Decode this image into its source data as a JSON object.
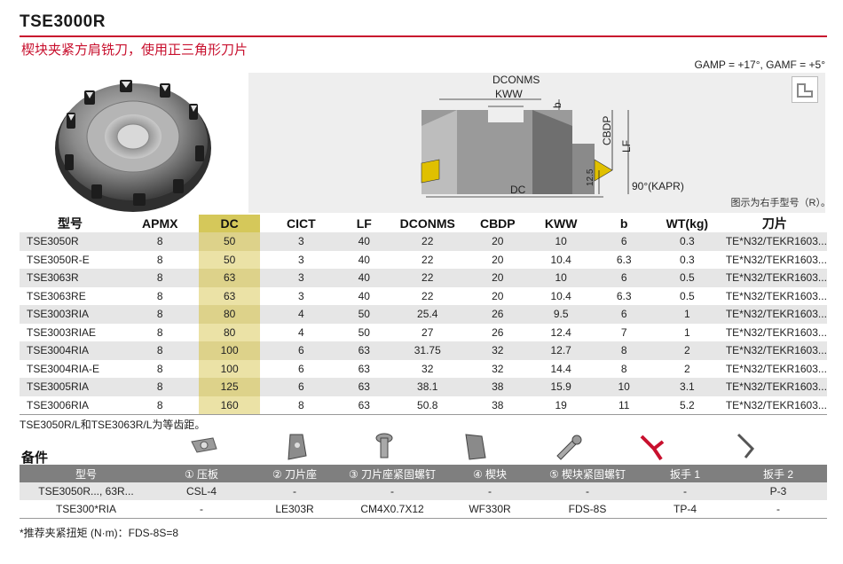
{
  "header": {
    "title": "TSE3000R",
    "subtitle": "楔块夹紧方肩铣刀，使用正三角形刀片",
    "gamp": "GAMP = +17°, GAMF = +5°"
  },
  "diagram": {
    "labels": {
      "dconms": "DCONMS",
      "kww": "KWW",
      "b": "b",
      "cbdp": "CBDP",
      "lf": "LF",
      "dim": "12.5",
      "dc": "DC",
      "kapr": "90°(KAPR)"
    },
    "note": "图示为右手型号（R）。"
  },
  "spec_table": {
    "headers": [
      "型号",
      "APMX",
      "DC",
      "CICT",
      "LF",
      "DCONMS",
      "CBDP",
      "KWW",
      "b",
      "WT(kg)",
      "刀片"
    ],
    "rows": [
      [
        "TSE3050R",
        "8",
        "50",
        "3",
        "40",
        "22",
        "20",
        "10",
        "6",
        "0.3",
        "TE*N32/TEKR1603..."
      ],
      [
        "TSE3050R-E",
        "8",
        "50",
        "3",
        "40",
        "22",
        "20",
        "10.4",
        "6.3",
        "0.3",
        "TE*N32/TEKR1603..."
      ],
      [
        "TSE3063R",
        "8",
        "63",
        "3",
        "40",
        "22",
        "20",
        "10",
        "6",
        "0.5",
        "TE*N32/TEKR1603..."
      ],
      [
        "TSE3063RE",
        "8",
        "63",
        "3",
        "40",
        "22",
        "20",
        "10.4",
        "6.3",
        "0.5",
        "TE*N32/TEKR1603..."
      ],
      [
        "TSE3003RIA",
        "8",
        "80",
        "4",
        "50",
        "25.4",
        "26",
        "9.5",
        "6",
        "1",
        "TE*N32/TEKR1603..."
      ],
      [
        "TSE3003RIAE",
        "8",
        "80",
        "4",
        "50",
        "27",
        "26",
        "12.4",
        "7",
        "1",
        "TE*N32/TEKR1603..."
      ],
      [
        "TSE3004RIA",
        "8",
        "100",
        "6",
        "63",
        "31.75",
        "32",
        "12.7",
        "8",
        "2",
        "TE*N32/TEKR1603..."
      ],
      [
        "TSE3004RIA-E",
        "8",
        "100",
        "6",
        "63",
        "32",
        "32",
        "14.4",
        "8",
        "2",
        "TE*N32/TEKR1603..."
      ],
      [
        "TSE3005RIA",
        "8",
        "125",
        "6",
        "63",
        "38.1",
        "38",
        "15.9",
        "10",
        "3.1",
        "TE*N32/TEKR1603..."
      ],
      [
        "TSE3006RIA",
        "8",
        "160",
        "8",
        "63",
        "50.8",
        "38",
        "19",
        "11",
        "5.2",
        "TE*N32/TEKR1603..."
      ]
    ],
    "note": "TSE3050R/L和TSE3063R/L为等齿距。"
  },
  "parts": {
    "title": "备件",
    "headers": [
      "型号",
      "① 压板",
      "② 刀片座",
      "③ 刀片座紧固螺钉",
      "④ 楔块",
      "⑤ 楔块紧固螺钉",
      "扳手 1",
      "扳手 2"
    ],
    "rows": [
      [
        "TSE3050R..., 63R...",
        "CSL-4",
        "-",
        "-",
        "-",
        "-",
        "-",
        "P-3"
      ],
      [
        "TSE300*RIA",
        "-",
        "LE303R",
        "CM4X0.7X12",
        "WF330R",
        "FDS-8S",
        "TP-4",
        "-"
      ]
    ],
    "note": "*推荐夹紧扭矩 (N·m)：FDS-8S=8"
  },
  "colors": {
    "accent": "#c8102e",
    "highlight_header": "#d5c85a",
    "highlight_cell": "#ebe2a6",
    "row_shade": "#e6e6e6"
  }
}
